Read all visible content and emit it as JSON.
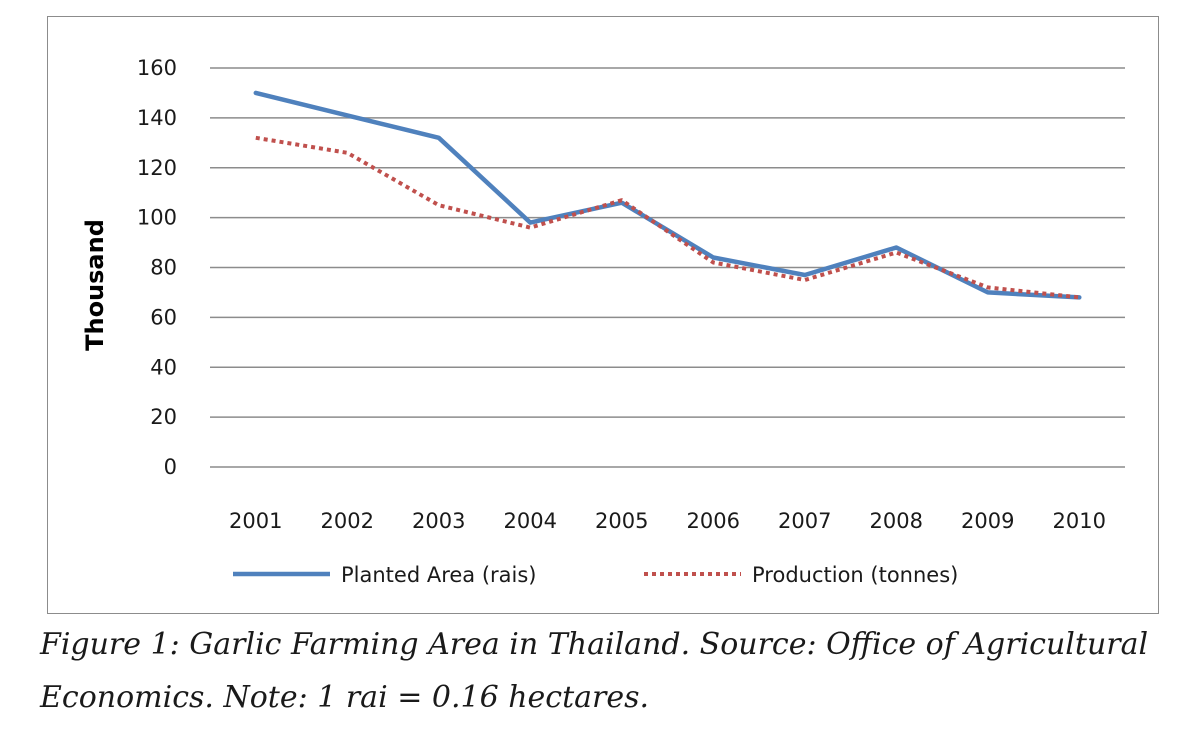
{
  "caption": "Figure 1: Garlic Farming Area in Thailand. Source: Office of Agricultural Economics. Note: 1 rai = 0.16 hectares.",
  "chart_data": {
    "type": "line",
    "title": "",
    "xlabel": "",
    "ylabel": "Thousand",
    "x": [
      "2001",
      "2002",
      "2003",
      "2004",
      "2005",
      "2006",
      "2007",
      "2008",
      "2009",
      "2010"
    ],
    "yticks": [
      "0",
      "20",
      "40",
      "60",
      "80",
      "100",
      "120",
      "140",
      "160"
    ],
    "ylim": [
      0,
      160
    ],
    "grid": "horizontal",
    "legend": "bottom",
    "series": [
      {
        "name": "Planted Area (rais)",
        "values": [
          150,
          141,
          132,
          98,
          106,
          84,
          77,
          88,
          70,
          68
        ],
        "color": "#4f81bd",
        "style": "solid"
      },
      {
        "name": "Production (tonnes)",
        "values": [
          132,
          126,
          105,
          96,
          107,
          82,
          75,
          86,
          72,
          68
        ],
        "color": "#c0504d",
        "style": "dotted"
      }
    ]
  }
}
